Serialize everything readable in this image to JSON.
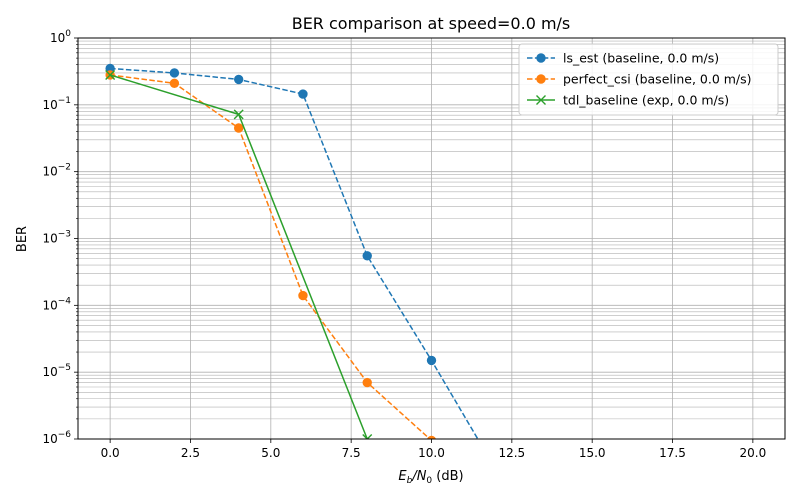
{
  "chart_data": {
    "type": "line",
    "title": "BER comparison at speed=0.0 m/s",
    "xlabel_main": "E",
    "xlabel_sub1": "b",
    "xlabel_mid": "/N",
    "xlabel_sub2": "0",
    "xlabel_tail": " (dB)",
    "ylabel": "BER",
    "xlim": [
      -1,
      21
    ],
    "ylim": [
      1e-06,
      1
    ],
    "yscale": "log",
    "grid": true,
    "legend_position": "top-right",
    "x_ticks": [
      0.0,
      2.5,
      5.0,
      7.5,
      10.0,
      12.5,
      15.0,
      17.5,
      20.0
    ],
    "x_tick_labels": [
      "0.0",
      "2.5",
      "5.0",
      "7.5",
      "10.0",
      "12.5",
      "15.0",
      "17.5",
      "20.0"
    ],
    "y_tick_exponents": [
      "0",
      "−1",
      "−2",
      "−3",
      "−4",
      "−5",
      "−6"
    ],
    "y_tick_base": "10",
    "series": [
      {
        "name": "ls_est (baseline, 0.0 m/s)",
        "color": "#1f77b4",
        "linestyle": "dashed",
        "marker": "circle",
        "x": [
          0,
          2,
          4,
          6,
          8,
          10,
          12
        ],
        "y": [
          0.35,
          0.3,
          0.24,
          0.145,
          0.00055,
          1.5e-05,
          3.5e-07
        ]
      },
      {
        "name": "perfect_csi (baseline, 0.0 m/s)",
        "color": "#ff7f0e",
        "linestyle": "dashed",
        "marker": "circle",
        "x": [
          0,
          2,
          4,
          6,
          8,
          10
        ],
        "y": [
          0.28,
          0.21,
          0.045,
          0.00014,
          7e-06,
          9.5e-07
        ]
      },
      {
        "name": "tdl_baseline (exp, 0.0 m/s)",
        "color": "#2ca02c",
        "linestyle": "solid",
        "marker": "x",
        "x": [
          0,
          4,
          8
        ],
        "y": [
          0.28,
          0.072,
          1e-06
        ]
      }
    ]
  }
}
